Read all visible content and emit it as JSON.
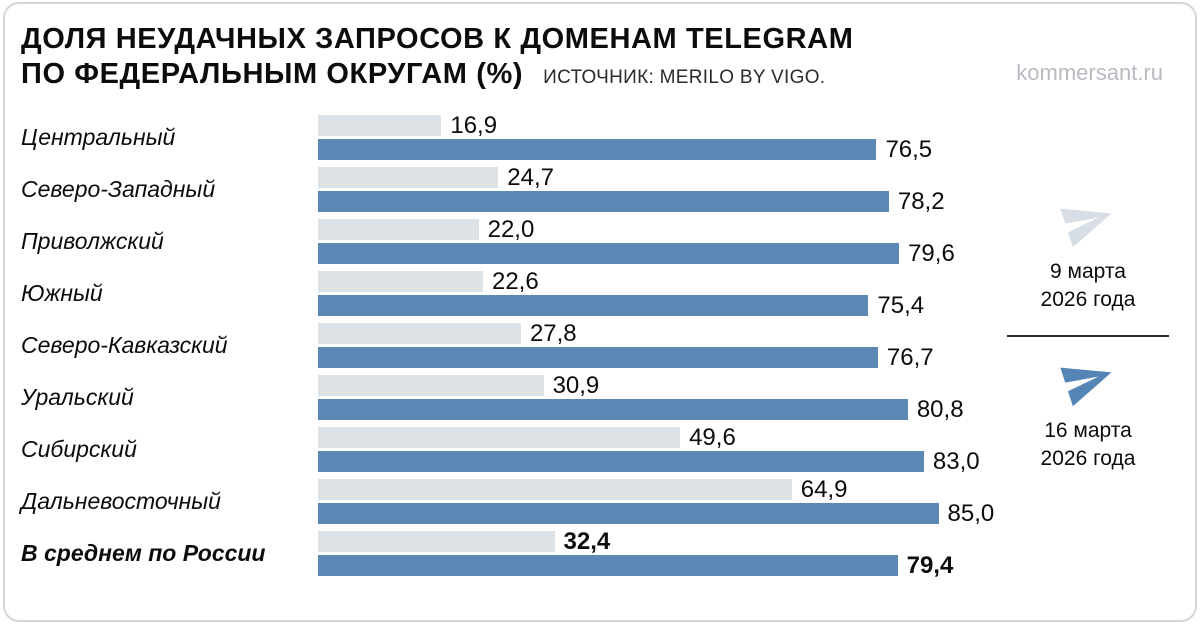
{
  "header": {
    "title_line1": "ДОЛЯ НЕУДАЧНЫХ ЗАПРОСОВ К ДОМЕНАМ TELEGRAM",
    "title_line2": "ПО ФЕДЕРАЛЬНЫМ ОКРУГАМ (%)",
    "source": "ИСТОЧНИК: MERILO BY VIGO.",
    "site": "kommersant.ru"
  },
  "legend": [
    {
      "line1": "9 марта",
      "line2": "2026 года",
      "color": "#d8dee5",
      "icon": "telegram-plane"
    },
    {
      "line1": "16 марта",
      "line2": "2026 года",
      "color": "#5585b6",
      "icon": "telegram-plane"
    }
  ],
  "chart_data": {
    "type": "bar",
    "orientation": "horizontal",
    "title": "ДОЛЯ НЕУДАЧНЫХ ЗАПРОСОВ К ДОМЕНАМ TELEGRAM ПО ФЕДЕРАЛЬНЫМ ОКРУГАМ (%)",
    "source": "ИСТОЧНИК: MERILO BY VIGO.",
    "categories": [
      "Центральный",
      "Северо-Западный",
      "Приволжский",
      "Южный",
      "Северо-Кавказский",
      "Уральский",
      "Сибирский",
      "Дальневосточный",
      "В среднем по России"
    ],
    "series": [
      {
        "name": "9 марта 2026 года",
        "color": "#dde2e7",
        "values": [
          16.9,
          24.7,
          22.0,
          22.6,
          27.8,
          30.9,
          49.6,
          64.9,
          32.4
        ]
      },
      {
        "name": "16 марта 2026 года",
        "color": "#5c88b5",
        "values": [
          76.5,
          78.2,
          79.6,
          75.4,
          76.7,
          80.8,
          83.0,
          85.0,
          79.4
        ]
      }
    ],
    "xlim": [
      0,
      90
    ],
    "emphasized_category_index": 8,
    "value_decimal_separator": ",",
    "legend_position": "right",
    "grid": false
  }
}
